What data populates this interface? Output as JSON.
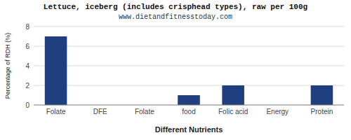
{
  "chart_data": {
    "type": "bar",
    "title": "Lettuce, iceberg (includes crisphead types), raw per 100g",
    "subtitle": "www.dietandfitnesstoday.com",
    "xlabel": "Different Nutrients",
    "ylabel": "Percentage of RDH (%)",
    "categories": [
      "Folate",
      "DFE",
      "Folate",
      "food",
      "Folic acid",
      "Energy",
      "Protein"
    ],
    "values": [
      7.0,
      0.0,
      0.0,
      1.0,
      2.0,
      0.0,
      2.0
    ],
    "color": "#1F3F7F",
    "ylim": [
      0,
      8
    ],
    "yticks": [
      0,
      2,
      4,
      6,
      8
    ],
    "grid": true
  }
}
